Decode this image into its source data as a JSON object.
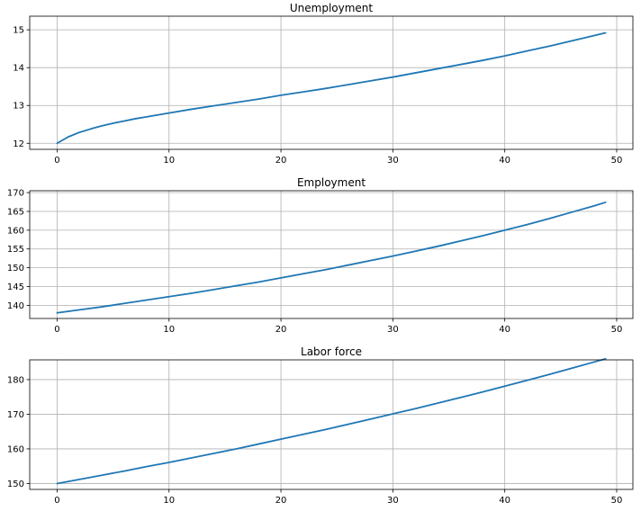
{
  "chart_data": [
    {
      "type": "line",
      "title": "Unemployment",
      "xlabel": "",
      "ylabel": "",
      "grid": true,
      "xlim": [
        -2.45,
        51.45
      ],
      "ylim": [
        11.84,
        15.36
      ],
      "xticks": [
        0,
        10,
        20,
        30,
        40,
        50
      ],
      "xtick_labels": [
        "0",
        "10",
        "20",
        "30",
        "40",
        "50"
      ],
      "yticks": [
        12,
        13,
        14,
        15
      ],
      "ytick_labels": [
        "12",
        "13",
        "14",
        "15"
      ],
      "series": [
        {
          "color": "#1f77b4",
          "x": [
            0,
            1,
            2,
            3,
            4,
            5,
            6,
            7,
            8,
            9,
            10,
            12,
            14,
            16,
            18,
            20,
            22,
            24,
            26,
            28,
            30,
            32,
            34,
            36,
            38,
            40,
            42,
            44,
            46,
            48,
            49
          ],
          "y": [
            12.0,
            12.17,
            12.29,
            12.38,
            12.46,
            12.53,
            12.59,
            12.65,
            12.7,
            12.75,
            12.8,
            12.9,
            12.99,
            13.08,
            13.17,
            13.27,
            13.36,
            13.45,
            13.55,
            13.65,
            13.75,
            13.86,
            13.97,
            14.08,
            14.19,
            14.31,
            14.44,
            14.57,
            14.71,
            14.85,
            14.92
          ]
        }
      ]
    },
    {
      "type": "line",
      "title": "Employment",
      "xlabel": "",
      "ylabel": "",
      "grid": true,
      "xlim": [
        -2.45,
        51.45
      ],
      "ylim": [
        136.5,
        170.5
      ],
      "xticks": [
        0,
        10,
        20,
        30,
        40,
        50
      ],
      "xtick_labels": [
        "0",
        "10",
        "20",
        "30",
        "40",
        "50"
      ],
      "yticks": [
        140,
        145,
        150,
        155,
        160,
        165,
        170
      ],
      "ytick_labels": [
        "140",
        "145",
        "150",
        "155",
        "160",
        "165",
        "170"
      ],
      "series": [
        {
          "color": "#1f77b4",
          "x": [
            0,
            2,
            4,
            6,
            8,
            10,
            12,
            14,
            16,
            18,
            20,
            22,
            24,
            26,
            28,
            30,
            32,
            34,
            36,
            38,
            40,
            42,
            44,
            46,
            48,
            49
          ],
          "y": [
            138.0,
            138.8,
            139.6,
            140.5,
            141.4,
            142.3,
            143.2,
            144.2,
            145.2,
            146.2,
            147.3,
            148.4,
            149.5,
            150.7,
            151.9,
            153.1,
            154.4,
            155.7,
            157.1,
            158.5,
            160.0,
            161.5,
            163.1,
            164.8,
            166.5,
            167.4
          ]
        }
      ]
    },
    {
      "type": "line",
      "title": "Labor force",
      "xlabel": "",
      "ylabel": "",
      "grid": true,
      "xlim": [
        -2.45,
        51.45
      ],
      "ylim": [
        148.3,
        185.7
      ],
      "xticks": [
        0,
        10,
        20,
        30,
        40,
        50
      ],
      "xtick_labels": [
        "0",
        "10",
        "20",
        "30",
        "40",
        "50"
      ],
      "yticks": [
        150,
        160,
        170,
        180
      ],
      "ytick_labels": [
        "150",
        "160",
        "170",
        "180"
      ],
      "series": [
        {
          "color": "#1f77b4",
          "x": [
            0,
            2,
            4,
            6,
            8,
            10,
            12,
            14,
            16,
            18,
            20,
            22,
            24,
            26,
            28,
            30,
            32,
            34,
            36,
            38,
            40,
            42,
            44,
            46,
            48,
            49
          ],
          "y": [
            150.0,
            151.2,
            152.4,
            153.6,
            154.9,
            156.1,
            157.4,
            158.7,
            160.0,
            161.4,
            162.8,
            164.2,
            165.6,
            167.1,
            168.6,
            170.1,
            171.6,
            173.2,
            174.8,
            176.4,
            178.1,
            179.8,
            181.5,
            183.3,
            185.1,
            186.0
          ]
        }
      ]
    }
  ]
}
